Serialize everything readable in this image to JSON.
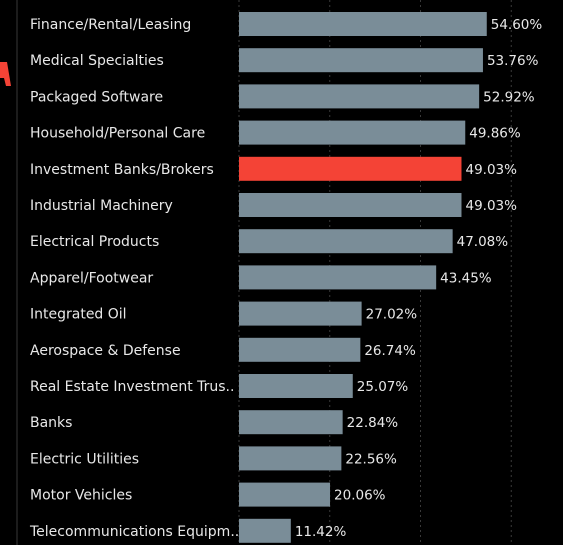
{
  "chart_data": {
    "type": "barh",
    "categories": [
      "Finance/Rental/Leasing",
      "Medical Specialties",
      "Packaged Software",
      "Household/Personal Care",
      "Investment Banks/Brokers",
      "Industrial Machinery",
      "Electrical Products",
      "Apparel/Footwear",
      "Integrated Oil",
      "Aerospace & Defense",
      "Real Estate Investment Trus..",
      "Banks",
      "Electric Utilities",
      "Motor Vehicles",
      "Telecommunications Equipm.."
    ],
    "values": [
      54.6,
      53.76,
      52.92,
      49.86,
      49.03,
      49.03,
      47.08,
      43.45,
      27.02,
      26.74,
      25.07,
      22.84,
      22.56,
      20.06,
      11.42
    ],
    "value_labels": [
      "54.60%",
      "53.76%",
      "52.92%",
      "49.86%",
      "49.03%",
      "49.03%",
      "47.08%",
      "43.45%",
      "27.02%",
      "26.74%",
      "25.07%",
      "22.84%",
      "22.56%",
      "20.06%",
      "11.42%"
    ],
    "colors": [
      "#7a8d98",
      "#7a8d98",
      "#7a8d98",
      "#7a8d98",
      "#f44336",
      "#7a8d98",
      "#7a8d98",
      "#7a8d98",
      "#7a8d98",
      "#7a8d98",
      "#7a8d98",
      "#7a8d98",
      "#7a8d98",
      "#7a8d98",
      "#7a8d98"
    ],
    "xlim": [
      0,
      71.4
    ],
    "xticks": [
      0,
      20,
      40,
      60
    ],
    "grid": true
  }
}
